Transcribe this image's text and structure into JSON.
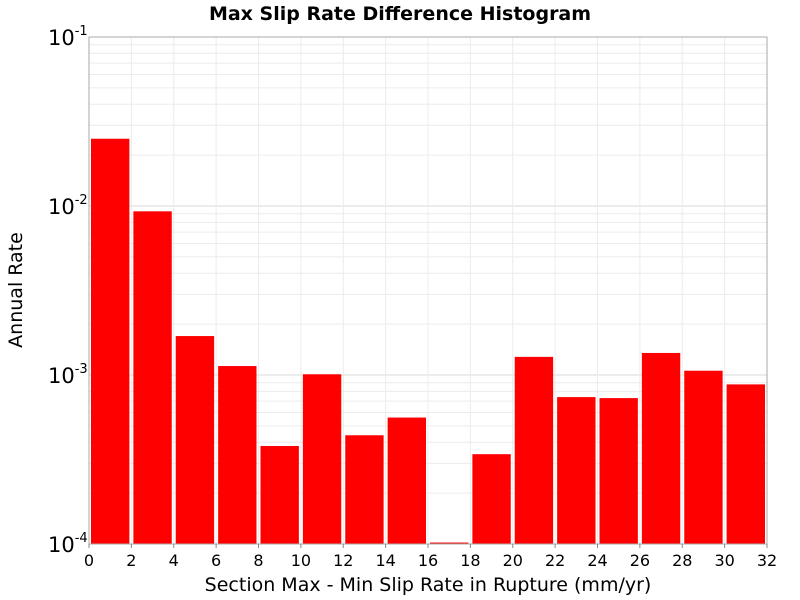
{
  "chart_data": {
    "type": "bar",
    "title": "Max Slip Rate Difference Histogram",
    "xlabel": "Section Max - Min Slip Rate in Rupture (mm/yr)",
    "ylabel": "Annual Rate",
    "xlim": [
      0,
      32
    ],
    "ylim": [
      0.0001,
      0.1
    ],
    "yscale": "log",
    "bin_width": 2,
    "bar_color": "#ff0000",
    "x_ticks": [
      "0",
      "2",
      "4",
      "6",
      "8",
      "10",
      "12",
      "14",
      "16",
      "18",
      "20",
      "22",
      "24",
      "26",
      "28",
      "30",
      "32"
    ],
    "y_ticks": [
      {
        "base": "10",
        "exp": "-4",
        "value": 0.0001
      },
      {
        "base": "10",
        "exp": "-3",
        "value": 0.001
      },
      {
        "base": "10",
        "exp": "-2",
        "value": 0.01
      },
      {
        "base": "10",
        "exp": "-1",
        "value": 0.1
      }
    ],
    "grid": true,
    "bins": [
      {
        "x_start": 0,
        "x_end": 2,
        "value": 0.025
      },
      {
        "x_start": 2,
        "x_end": 4,
        "value": 0.0093
      },
      {
        "x_start": 4,
        "x_end": 6,
        "value": 0.0017
      },
      {
        "x_start": 6,
        "x_end": 8,
        "value": 0.00113
      },
      {
        "x_start": 8,
        "x_end": 10,
        "value": 0.00038
      },
      {
        "x_start": 10,
        "x_end": 12,
        "value": 0.00101
      },
      {
        "x_start": 12,
        "x_end": 14,
        "value": 0.00044
      },
      {
        "x_start": 14,
        "x_end": 16,
        "value": 0.00056
      },
      {
        "x_start": 16,
        "x_end": 18,
        "value": 0.000102
      },
      {
        "x_start": 18,
        "x_end": 20,
        "value": 0.00034
      },
      {
        "x_start": 20,
        "x_end": 22,
        "value": 0.00128
      },
      {
        "x_start": 22,
        "x_end": 24,
        "value": 0.00074
      },
      {
        "x_start": 24,
        "x_end": 26,
        "value": 0.00073
      },
      {
        "x_start": 26,
        "x_end": 28,
        "value": 0.00135
      },
      {
        "x_start": 28,
        "x_end": 30,
        "value": 0.00106
      },
      {
        "x_start": 30,
        "x_end": 32,
        "value": 0.00088
      }
    ]
  }
}
